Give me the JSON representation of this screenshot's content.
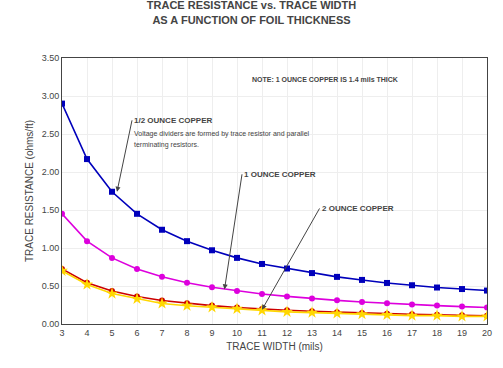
{
  "chart_data": {
    "type": "line",
    "title": "TRACE RESISTANCE vs. TRACE WIDTH",
    "subtitle": "AS A FUNCTION OF FOIL THICKNESS",
    "xlabel": "TRACE WIDTH (mils)",
    "ylabel": "TRACE RESISTANCE (ohms/ft)",
    "x": [
      3,
      4,
      5,
      6,
      7,
      8,
      9,
      10,
      11,
      12,
      13,
      14,
      15,
      16,
      17,
      18,
      19,
      20
    ],
    "series": [
      {
        "color": "#0000BB",
        "marker": "square",
        "values": [
          2.9,
          2.17,
          1.74,
          1.45,
          1.24,
          1.09,
          0.97,
          0.87,
          0.79,
          0.73,
          0.67,
          0.62,
          0.58,
          0.54,
          0.51,
          0.48,
          0.46,
          0.44
        ]
      },
      {
        "color": "#DD00DD",
        "marker": "circle",
        "values": [
          1.45,
          1.09,
          0.87,
          0.725,
          0.621,
          0.543,
          0.483,
          0.435,
          0.395,
          0.363,
          0.335,
          0.311,
          0.29,
          0.272,
          0.256,
          0.242,
          0.229,
          0.218
        ]
      },
      {
        "color": "#CC0000",
        "marker": "circle",
        "values": [
          0.725,
          0.543,
          0.435,
          0.362,
          0.31,
          0.272,
          0.242,
          0.218,
          0.197,
          0.181,
          0.167,
          0.155,
          0.145,
          0.136,
          0.128,
          0.121,
          0.115,
          0.109
        ]
      },
      {
        "color": "#FFD700",
        "marker": "star",
        "values": [
          0.7,
          0.52,
          0.4,
          0.33,
          0.27,
          0.24,
          0.22,
          0.2,
          0.18,
          0.16,
          0.15,
          0.14,
          0.13,
          0.12,
          0.11,
          0.11,
          0.1,
          0.1
        ]
      }
    ],
    "xlim": [
      3,
      20
    ],
    "ylim": [
      0.0,
      3.5
    ],
    "xticks": [
      3,
      4,
      5,
      6,
      7,
      8,
      9,
      10,
      11,
      12,
      13,
      14,
      15,
      16,
      17,
      18,
      19,
      20
    ],
    "yticks": [
      {
        "value": 0.0,
        "label": "0.00"
      },
      {
        "value": 0.5,
        "label": "0.50"
      },
      {
        "value": 1.0,
        "label": "1.00"
      },
      {
        "value": 1.5,
        "label": "1.50"
      },
      {
        "value": 2.0,
        "label": "2.00"
      },
      {
        "value": 2.5,
        "label": "2.50"
      },
      {
        "value": 3.0,
        "label": "3.00"
      },
      {
        "value": 3.5,
        "label": "3.50"
      }
    ],
    "grid": true,
    "annotations": [
      {
        "text": "NOTE: 1 OUNCE COPPER IS 1.4 mils THICK",
        "x": 10.5,
        "y": 3.22
      },
      {
        "text": "1/2 OUNCE COPPER",
        "x": 5.2,
        "y": 1.74,
        "text_x": 5.8,
        "text_y": 2.68
      },
      {
        "text": "Voltage dividers are formed by trace resistor and parallel",
        "x": 5.8,
        "y": 2.5
      },
      {
        "text": "terminating resistors.",
        "x": 5.8,
        "y": 2.36
      },
      {
        "text": "1 OUNCE COPPER",
        "x": 9.5,
        "y": 0.455,
        "text_x": 10.2,
        "text_y": 1.97
      },
      {
        "text": "2 OUNCE COPPER",
        "x": 11.0,
        "y": 0.188,
        "text_x": 13.3,
        "text_y": 1.52
      }
    ]
  }
}
